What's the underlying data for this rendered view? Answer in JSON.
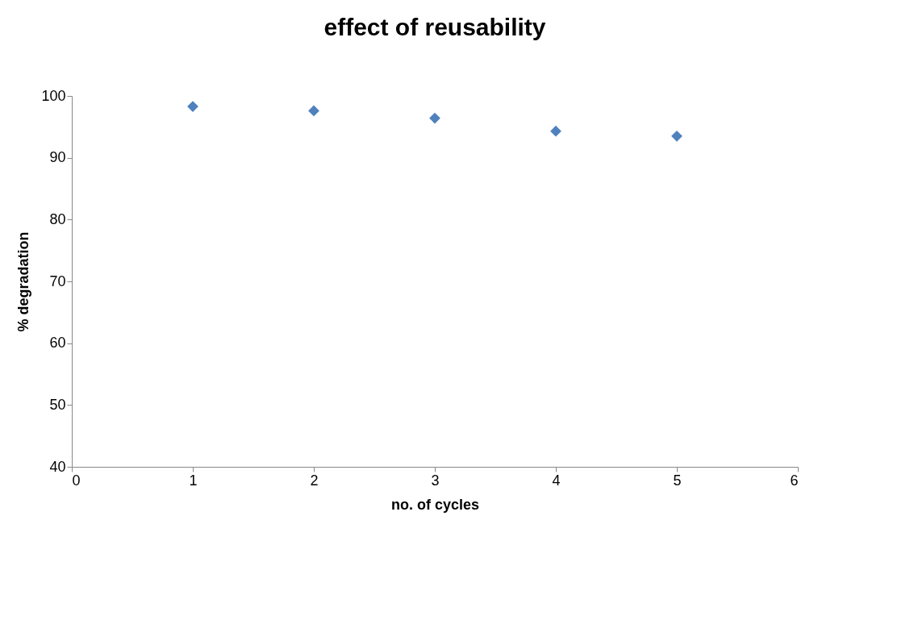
{
  "chart_data": {
    "type": "scatter",
    "title": "effect of reusability",
    "xlabel": "no. of cycles",
    "ylabel": "% degradation",
    "x": [
      1,
      2,
      3,
      4,
      5
    ],
    "series": [
      {
        "color": "#4f81bd",
        "values": [
          98.3,
          97.6,
          96.4,
          94.3,
          93.5
        ]
      }
    ],
    "xlim": [
      0,
      6
    ],
    "xticks": [
      0,
      1,
      2,
      3,
      4,
      5,
      6
    ],
    "ylim": [
      40,
      100
    ],
    "yticks": [
      40,
      50,
      60,
      70,
      80,
      90,
      100
    ],
    "marker": "diamond"
  }
}
